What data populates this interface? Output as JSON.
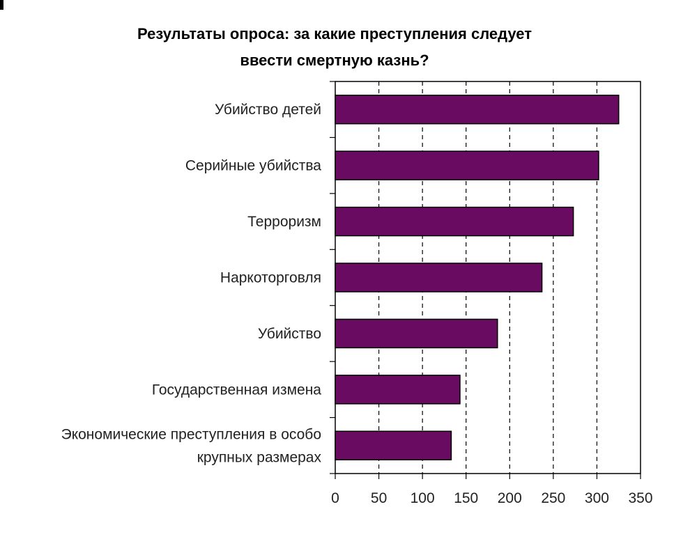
{
  "chart_data": {
    "type": "bar",
    "orientation": "horizontal",
    "title_lines": [
      "Результаты опроса: за какие преступления следует",
      "ввести смертную казнь?"
    ],
    "categories": [
      [
        "Убийство детей"
      ],
      [
        "Серийные убийства"
      ],
      [
        "Терроризм"
      ],
      [
        "Наркоторговля"
      ],
      [
        "Убийство"
      ],
      [
        "Государственная измена"
      ],
      [
        "Экономические преступления в особо",
        "крупных размерах"
      ]
    ],
    "values": [
      325,
      302,
      273,
      237,
      186,
      143,
      133
    ],
    "xlim": [
      0,
      350
    ],
    "xticks": [
      0,
      50,
      100,
      150,
      200,
      250,
      300,
      350
    ],
    "grid": "vertical-dashed",
    "bar_color": "#6a0b62",
    "bar_edge_color": "#000000"
  }
}
